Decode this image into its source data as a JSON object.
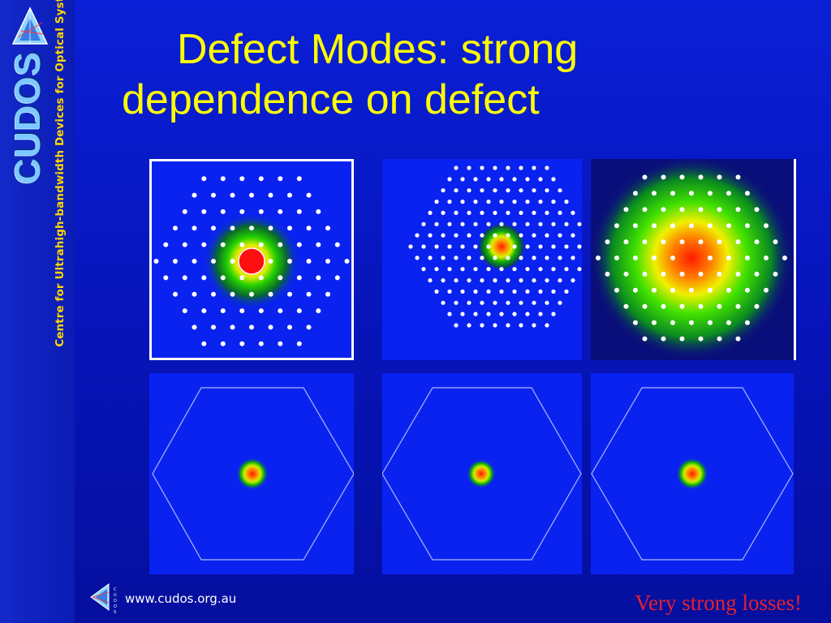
{
  "logo": {
    "word": "CUDOS",
    "icon": "cudos-triangle-logo"
  },
  "tagline": "Centre for Ultrahigh-bandwidth Devices for Optical Systems",
  "slide": {
    "title_line1": "Defect Modes: strong",
    "title_line2": "dependence on defect"
  },
  "footer": {
    "url": "www.cudos.org.au",
    "note": "Very strong losses!"
  },
  "colors": {
    "background": "#0714b8",
    "title": "#ffff00",
    "tagline": "#ffd800",
    "note": "#e8202a",
    "panel_bg": "#0a22f0"
  },
  "figure": {
    "top_row": [
      {
        "name": "lattice-small-defect-mode",
        "mode_scale": 0.7,
        "has_core_disk": true,
        "framed": true
      },
      {
        "name": "lattice-dense-defect-mode",
        "mode_scale": 0.4,
        "has_core_disk": false,
        "framed": false
      },
      {
        "name": "lattice-large-core-mode",
        "mode_scale": 1.0,
        "has_core_disk": false,
        "framed": false
      }
    ],
    "bottom_row": [
      {
        "name": "hexagon-mode-1",
        "mode_scale": 0.5
      },
      {
        "name": "hexagon-mode-2",
        "mode_scale": 0.45
      },
      {
        "name": "hexagon-mode-3",
        "mode_scale": 0.5
      }
    ]
  }
}
